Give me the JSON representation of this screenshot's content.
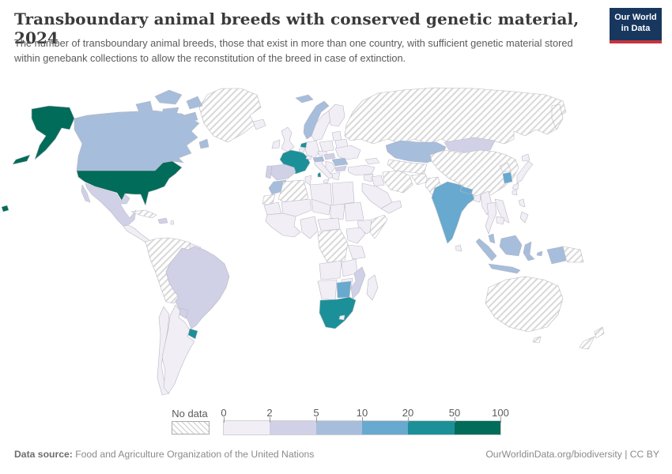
{
  "header": {
    "title": "Transboundary animal breeds with conserved genetic material, 2024",
    "subtitle": "The number of transboundary animal breeds, those that exist in more than one country, with sufficient genetic material stored within genebank collections to allow the reconstitution of the breed in case of extinction.",
    "logo_line1": "Our World",
    "logo_line2": "in Data",
    "logo_bg": "#18375f",
    "logo_red": "#c5353c"
  },
  "chart_data": {
    "type": "choropleth",
    "title": "Transboundary animal breeds with conserved genetic material, 2024",
    "unit": "breeds",
    "projection": "world",
    "legend": {
      "no_data_label": "No data",
      "tick_labels": [
        "0",
        "2",
        "5",
        "10",
        "20",
        "50",
        "100"
      ],
      "bins": [
        {
          "range": "0-2",
          "color": "#f1eef6"
        },
        {
          "range": "2-5",
          "color": "#d0d1e6"
        },
        {
          "range": "5-10",
          "color": "#a6bddb"
        },
        {
          "range": "10-20",
          "color": "#67a9cf"
        },
        {
          "range": "20-50",
          "color": "#1c9099"
        },
        {
          "range": "50-100",
          "color": "#016c59"
        }
      ],
      "no_data_pattern": "diagonal-hatch"
    },
    "countries": {
      "united-states": "50-100",
      "canada": "5-10",
      "norway": "5-10",
      "svalbard": "5-10",
      "austria": "5-10",
      "romania": "5-10",
      "morocco": "5-10",
      "kazakhstan": "5-10",
      "indonesia": "5-10",
      "malaysia": "5-10",
      "west-papua": "5-10",
      "iceland-region": "0-2",
      "india": "10-20",
      "nepal": "10-20",
      "south-korea": "10-20",
      "botswana": "10-20",
      "france": "20-50",
      "netherlands": "20-50",
      "uruguay": "20-50",
      "south-africa": "20-50",
      "mexico": "2-5",
      "brazil": "2-5",
      "paraguay": "2-5",
      "spain": "2-5",
      "portugal": "2-5",
      "mongolia": "2-5",
      "mozambique": "2-5",
      "hungary": "2-5",
      "bulgaria": "2-5",
      "kyrgyzstan": "2-5",
      "hispaniola": "2-5",
      "argentina": "0-2",
      "chile": "0-2",
      "guyana-suriname": "0-2",
      "central-america": "0-2",
      "lesser-antilles": "0-2",
      "united-kingdom": "0-2",
      "ireland": "0-2",
      "sweden": "0-2",
      "finland": "0-2",
      "denmark": "0-2",
      "germany": "0-2",
      "poland": "0-2",
      "czechia": "0-2",
      "switzerland": "0-2",
      "belgium": "0-2",
      "italy": "0-2",
      "balkans": "0-2",
      "greece": "0-2",
      "ukraine": "0-2",
      "belarus": "0-2",
      "baltics": "0-2",
      "turkey": "0-2",
      "caucasus": "0-2",
      "syria": "0-2",
      "iraq": "0-2",
      "saudi-arabia": "0-2",
      "yemen-oman": "0-2",
      "egypt": "0-2",
      "libya": "0-2",
      "tunisia": "0-2",
      "mauritania": "0-2",
      "mali": "0-2",
      "niger": "0-2",
      "chad": "0-2",
      "sudan": "0-2",
      "ethiopia": "0-2",
      "west-africa": "0-2",
      "nigeria-cameroon": "0-2",
      "central-african-republic": "0-2",
      "uganda-kenya": "0-2",
      "tanzania": "0-2",
      "angola": "0-2",
      "zambia": "0-2",
      "zimbabwe": "0-2",
      "namibia": "0-2",
      "lesotho": "0-2",
      "madagascar": "0-2",
      "japan": "0-2",
      "taiwan": "0-2",
      "myanmar": "0-2",
      "thailand": "0-2",
      "vietnam-laos": "0-2",
      "cambodia": "0-2",
      "philippines": "0-2",
      "sri-lanka": "0-2",
      "bangladesh": "0-2",
      "greenland": "no-data",
      "russia": "no-data",
      "china": "no-data",
      "north-korea": "no-data",
      "iran": "no-data",
      "afghanistan": "no-data",
      "pakistan": "no-data",
      "central-asia": "no-data",
      "algeria": "no-data",
      "western-sahara": "no-data",
      "somalia": "no-data",
      "dr-congo": "no-data",
      "australia": "no-data",
      "new-zealand": "no-data",
      "papua-new-guinea": "no-data",
      "andean-region": "no-data",
      "cuba": "no-data"
    }
  },
  "footer": {
    "datasource_label": "Data source:",
    "datasource_value": " Food and Agriculture Organization of the United Nations",
    "link": "OurWorldinData.org/biodiversity | CC BY"
  }
}
